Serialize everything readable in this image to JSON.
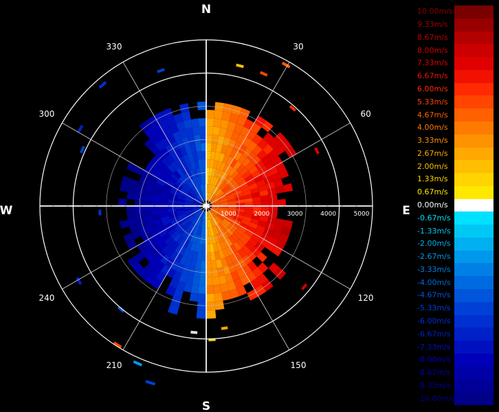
{
  "chart_data": {
    "type": "polar-radar",
    "compass": {
      "north": "N",
      "south": "S",
      "east": "E",
      "west": "W"
    },
    "azimuth_labels": [
      "30",
      "60",
      "120",
      "150",
      "210",
      "240",
      "300",
      "330"
    ],
    "range_labels": [
      "1000",
      "2000",
      "3000",
      "4000",
      "5000"
    ],
    "rmax": 5000,
    "legend": {
      "labels": [
        "10.00m/s",
        "9.33m/s",
        "8.67m/s",
        "8.00m/s",
        "7.33m/s",
        "6.67m/s",
        "6.00m/s",
        "5.33m/s",
        "4.67m/s",
        "4.00m/s",
        "3.33m/s",
        "2.67m/s",
        "2.00m/s",
        "1.33m/s",
        "0.67m/s",
        "0.00m/s",
        "-0.67m/s",
        "-1.33m/s",
        "-2.00m/s",
        "-2.67m/s",
        "-3.33m/s",
        "-4.00m/s",
        "-4.67m/s",
        "-5.33m/s",
        "-6.00m/s",
        "-6.67m/s",
        "-7.33m/s",
        "-8.00m/s",
        "-8.67m/s",
        "-9.33m/s",
        "-10.00m/s"
      ],
      "colors": [
        "#7a0000",
        "#980000",
        "#b30000",
        "#cc0000",
        "#e00000",
        "#f21000",
        "#ff2a00",
        "#ff4500",
        "#ff6000",
        "#ff7a00",
        "#ff9200",
        "#ffa800",
        "#ffbf00",
        "#ffd400",
        "#ffe800",
        "#ffffff",
        "#00e0ff",
        "#00c8f5",
        "#00b0f0",
        "#0098eb",
        "#0080e6",
        "#006ae0",
        "#0055db",
        "#0040d6",
        "#0030d0",
        "#0020c8",
        "#0010c0",
        "#0000b8",
        "#0000a8",
        "#000098",
        "#000088"
      ],
      "label_colors": [
        "#8a0000",
        "#a00000",
        "#b80000",
        "#cc0000",
        "#e00000",
        "#f21000",
        "#ff2a00",
        "#ff4500",
        "#ff6000",
        "#ff7a00",
        "#ff9200",
        "#ffa800",
        "#ffbf00",
        "#ffd400",
        "#ffe800",
        "#ffffff",
        "#00e0ff",
        "#00c8f5",
        "#00b0f0",
        "#0098eb",
        "#0080e6",
        "#006ae0",
        "#0055db",
        "#0040d6",
        "#0030d0",
        "#0020c8",
        "#0010c0",
        "#0000b8",
        "#0000a8",
        "#000098",
        "#000088"
      ]
    }
  }
}
